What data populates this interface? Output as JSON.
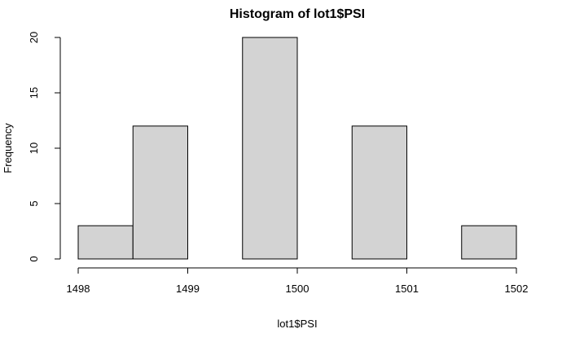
{
  "chart_data": {
    "type": "bar",
    "title": "Histogram of lot1$PSI",
    "xlabel": "lot1$PSI",
    "ylabel": "Frequency",
    "bins": [
      {
        "start": 1498.0,
        "end": 1498.5,
        "count": 3
      },
      {
        "start": 1498.5,
        "end": 1499.0,
        "count": 12
      },
      {
        "start": 1499.0,
        "end": 1499.5,
        "count": 0
      },
      {
        "start": 1499.5,
        "end": 1500.0,
        "count": 20
      },
      {
        "start": 1500.0,
        "end": 1500.5,
        "count": 0
      },
      {
        "start": 1500.5,
        "end": 1501.0,
        "count": 12
      },
      {
        "start": 1501.0,
        "end": 1501.5,
        "count": 0
      },
      {
        "start": 1501.5,
        "end": 1502.0,
        "count": 3
      }
    ],
    "xticks": [
      1498,
      1499,
      1500,
      1501,
      1502
    ],
    "yticks": [
      0,
      5,
      10,
      15,
      20
    ],
    "xlim": [
      1498,
      1502
    ],
    "ylim": [
      0,
      20
    ],
    "bar_color": "#d3d3d3",
    "grid": false
  }
}
